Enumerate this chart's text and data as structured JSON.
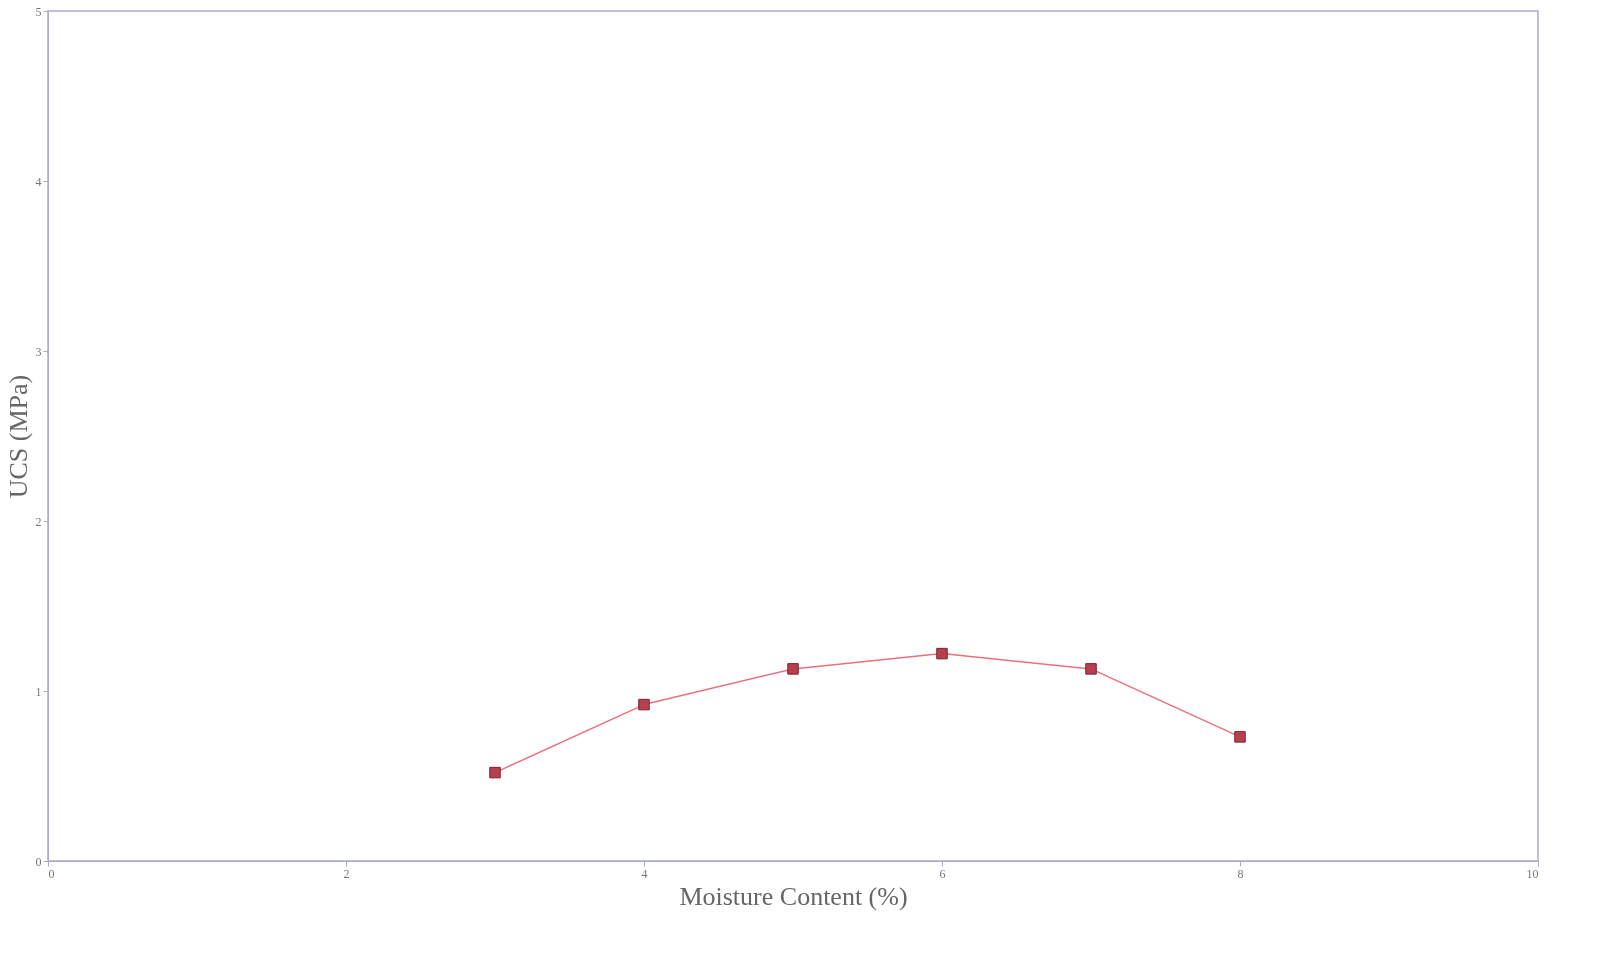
{
  "chart_data": {
    "type": "line",
    "xlabel": "Moisture Content (%)",
    "ylabel": "UCS (MPa)",
    "x": [
      3,
      4,
      5,
      6,
      7,
      8
    ],
    "series": [
      {
        "color": "#e8707e",
        "values": [
          0.52,
          0.92,
          1.13,
          1.22,
          1.13,
          0.73
        ]
      }
    ],
    "xlim": [
      0,
      10
    ],
    "xticks": [
      0,
      2,
      4,
      6,
      8,
      10
    ],
    "ylim": [
      0,
      5
    ],
    "yticks": [
      0,
      1,
      2,
      3,
      4,
      5
    ],
    "grid": false,
    "marker": "square",
    "line_style": "solid"
  }
}
